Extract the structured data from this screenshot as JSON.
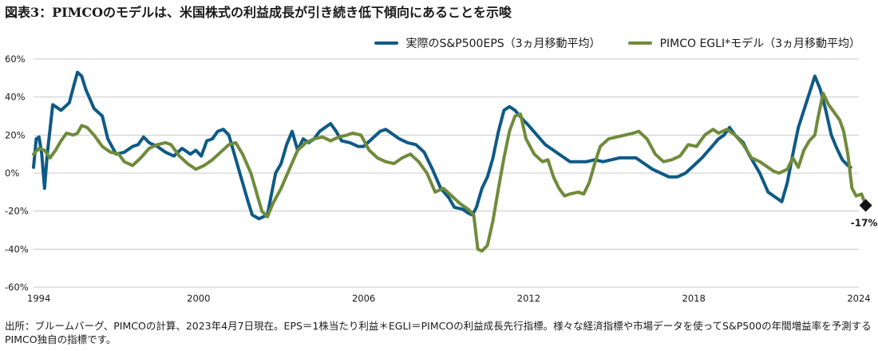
{
  "chart_data": {
    "type": "line",
    "title": "図表3：PIMCOのモデルは、米国株式の利益成長が引き続き低下傾向にあることを示唆",
    "xlabel": "",
    "ylabel": "",
    "xlim": [
      1994,
      2024
    ],
    "ylim": [
      -60,
      60
    ],
    "x_ticks": [
      "1994",
      "2000",
      "2006",
      "2012",
      "2018",
      "2024"
    ],
    "y_ticks": [
      "60%",
      "40%",
      "20%",
      "0%",
      "-20%",
      "-40%",
      "-60%"
    ],
    "y_tick_values": [
      60,
      40,
      20,
      0,
      -20,
      -40,
      -60
    ],
    "x_tick_values": [
      1994,
      2000,
      2006,
      2012,
      2018,
      2024
    ],
    "grid": "horizontal",
    "legend_position": "top-right",
    "series": [
      {
        "name": "実際のS&P500EPS（3ヵ月移動平均）",
        "color": "#0e5a86",
        "points": [
          [
            1994.0,
            3
          ],
          [
            1994.1,
            18
          ],
          [
            1994.2,
            19
          ],
          [
            1994.3,
            10
          ],
          [
            1994.4,
            -8
          ],
          [
            1994.5,
            10
          ],
          [
            1994.7,
            36
          ],
          [
            1995.0,
            33
          ],
          [
            1995.3,
            37
          ],
          [
            1995.5,
            48
          ],
          [
            1995.6,
            53
          ],
          [
            1995.75,
            51
          ],
          [
            1995.9,
            44
          ],
          [
            1996.2,
            34
          ],
          [
            1996.5,
            30
          ],
          [
            1996.7,
            18
          ],
          [
            1997.0,
            10
          ],
          [
            1997.3,
            11
          ],
          [
            1997.6,
            14
          ],
          [
            1997.8,
            15
          ],
          [
            1998.0,
            19
          ],
          [
            1998.2,
            16
          ],
          [
            1998.5,
            14
          ],
          [
            1998.8,
            11
          ],
          [
            1999.1,
            9
          ],
          [
            1999.4,
            13
          ],
          [
            1999.7,
            10
          ],
          [
            1999.9,
            12
          ],
          [
            2000.1,
            9
          ],
          [
            2000.3,
            17
          ],
          [
            2000.5,
            18
          ],
          [
            2000.7,
            22
          ],
          [
            2000.9,
            23
          ],
          [
            2001.1,
            20
          ],
          [
            2001.3,
            10
          ],
          [
            2001.6,
            -5
          ],
          [
            2001.8,
            -15
          ],
          [
            2001.95,
            -22
          ],
          [
            2002.2,
            -24
          ],
          [
            2002.5,
            -22
          ],
          [
            2002.8,
            0
          ],
          [
            2003.0,
            5
          ],
          [
            2003.2,
            15
          ],
          [
            2003.4,
            22
          ],
          [
            2003.6,
            12
          ],
          [
            2003.8,
            18
          ],
          [
            2004.0,
            16
          ],
          [
            2004.2,
            18
          ],
          [
            2004.4,
            22
          ],
          [
            2004.6,
            24
          ],
          [
            2004.8,
            26
          ],
          [
            2005.0,
            22
          ],
          [
            2005.2,
            17
          ],
          [
            2005.5,
            16
          ],
          [
            2005.8,
            14
          ],
          [
            2006.0,
            14
          ],
          [
            2006.3,
            18
          ],
          [
            2006.6,
            22
          ],
          [
            2006.8,
            23
          ],
          [
            2007.0,
            21
          ],
          [
            2007.3,
            18
          ],
          [
            2007.6,
            16
          ],
          [
            2007.9,
            15
          ],
          [
            2008.2,
            11
          ],
          [
            2008.5,
            2
          ],
          [
            2008.8,
            -8
          ],
          [
            2009.1,
            -13
          ],
          [
            2009.3,
            -18
          ],
          [
            2009.6,
            -19
          ],
          [
            2009.8,
            -21
          ],
          [
            2009.95,
            -22
          ],
          [
            2010.1,
            -18
          ],
          [
            2010.3,
            -8
          ],
          [
            2010.5,
            -2
          ],
          [
            2010.7,
            8
          ],
          [
            2010.9,
            22
          ],
          [
            2011.1,
            33
          ],
          [
            2011.3,
            35
          ],
          [
            2011.5,
            33
          ],
          [
            2011.8,
            28
          ],
          [
            2012.0,
            25
          ],
          [
            2012.3,
            20
          ],
          [
            2012.6,
            15
          ],
          [
            2012.9,
            12
          ],
          [
            2013.2,
            9
          ],
          [
            2013.5,
            6
          ],
          [
            2013.8,
            6
          ],
          [
            2014.1,
            6
          ],
          [
            2014.4,
            7
          ],
          [
            2014.7,
            6
          ],
          [
            2015.0,
            7
          ],
          [
            2015.3,
            8
          ],
          [
            2015.6,
            8
          ],
          [
            2015.9,
            8
          ],
          [
            2016.2,
            5
          ],
          [
            2016.5,
            2
          ],
          [
            2016.8,
            0
          ],
          [
            2017.1,
            -2
          ],
          [
            2017.4,
            -2
          ],
          [
            2017.7,
            0
          ],
          [
            2018.0,
            4
          ],
          [
            2018.3,
            8
          ],
          [
            2018.6,
            13
          ],
          [
            2018.9,
            18
          ],
          [
            2019.1,
            20
          ],
          [
            2019.3,
            24
          ],
          [
            2019.5,
            20
          ],
          [
            2019.8,
            16
          ],
          [
            2020.0,
            10
          ],
          [
            2020.2,
            5
          ],
          [
            2020.4,
            0
          ],
          [
            2020.7,
            -10
          ],
          [
            2020.9,
            -12
          ],
          [
            2021.1,
            -14
          ],
          [
            2021.2,
            -15
          ],
          [
            2021.4,
            -5
          ],
          [
            2021.6,
            10
          ],
          [
            2021.8,
            24
          ],
          [
            2022.0,
            33
          ],
          [
            2022.2,
            42
          ],
          [
            2022.4,
            51
          ],
          [
            2022.6,
            44
          ],
          [
            2022.8,
            33
          ],
          [
            2023.0,
            20
          ],
          [
            2023.2,
            13
          ],
          [
            2023.4,
            7
          ],
          [
            2023.6,
            4
          ],
          [
            2023.7,
            3
          ]
        ]
      },
      {
        "name": "PIMCO EGLI*モデル（3ヵ月移動平均）",
        "color": "#6f8b3a",
        "points": [
          [
            1994.0,
            10
          ],
          [
            1994.2,
            13
          ],
          [
            1994.4,
            12
          ],
          [
            1994.6,
            8
          ],
          [
            1994.8,
            12
          ],
          [
            1995.0,
            17
          ],
          [
            1995.2,
            21
          ],
          [
            1995.45,
            20
          ],
          [
            1995.6,
            21
          ],
          [
            1995.75,
            25
          ],
          [
            1995.95,
            24
          ],
          [
            1996.2,
            20
          ],
          [
            1996.5,
            14
          ],
          [
            1996.8,
            11
          ],
          [
            1997.1,
            10
          ],
          [
            1997.3,
            6
          ],
          [
            1997.6,
            4
          ],
          [
            1997.9,
            8
          ],
          [
            1998.2,
            13
          ],
          [
            1998.5,
            15
          ],
          [
            1998.8,
            16
          ],
          [
            1999.0,
            15
          ],
          [
            1999.3,
            9
          ],
          [
            1999.6,
            5
          ],
          [
            1999.9,
            2
          ],
          [
            2000.2,
            4
          ],
          [
            2000.5,
            7
          ],
          [
            2000.8,
            11
          ],
          [
            2001.1,
            15
          ],
          [
            2001.35,
            16
          ],
          [
            2001.6,
            10
          ],
          [
            2001.9,
            0
          ],
          [
            2002.1,
            -10
          ],
          [
            2002.3,
            -20
          ],
          [
            2002.5,
            -23
          ],
          [
            2002.7,
            -16
          ],
          [
            2003.0,
            -8
          ],
          [
            2003.3,
            2
          ],
          [
            2003.6,
            12
          ],
          [
            2003.9,
            16
          ],
          [
            2004.2,
            18
          ],
          [
            2004.5,
            19
          ],
          [
            2004.8,
            17
          ],
          [
            2005.1,
            19
          ],
          [
            2005.4,
            20
          ],
          [
            2005.6,
            21
          ],
          [
            2005.9,
            20
          ],
          [
            2006.2,
            12
          ],
          [
            2006.5,
            8
          ],
          [
            2006.8,
            6
          ],
          [
            2007.1,
            5
          ],
          [
            2007.4,
            8
          ],
          [
            2007.7,
            10
          ],
          [
            2008.0,
            6
          ],
          [
            2008.3,
            0
          ],
          [
            2008.6,
            -10
          ],
          [
            2008.9,
            -8
          ],
          [
            2009.2,
            -12
          ],
          [
            2009.5,
            -16
          ],
          [
            2009.8,
            -19
          ],
          [
            2010.0,
            -22
          ],
          [
            2010.15,
            -40
          ],
          [
            2010.3,
            -41
          ],
          [
            2010.5,
            -38
          ],
          [
            2010.7,
            -25
          ],
          [
            2010.9,
            -8
          ],
          [
            2011.1,
            8
          ],
          [
            2011.3,
            22
          ],
          [
            2011.5,
            30
          ],
          [
            2011.7,
            31
          ],
          [
            2011.9,
            18
          ],
          [
            2012.2,
            10
          ],
          [
            2012.5,
            6
          ],
          [
            2012.7,
            7
          ],
          [
            2012.9,
            -2
          ],
          [
            2013.1,
            -8
          ],
          [
            2013.3,
            -12
          ],
          [
            2013.5,
            -11
          ],
          [
            2013.8,
            -10
          ],
          [
            2014.0,
            -11
          ],
          [
            2014.2,
            -5
          ],
          [
            2014.4,
            5
          ],
          [
            2014.6,
            14
          ],
          [
            2014.9,
            18
          ],
          [
            2015.2,
            19
          ],
          [
            2015.5,
            20
          ],
          [
            2015.8,
            21
          ],
          [
            2016.0,
            22
          ],
          [
            2016.3,
            18
          ],
          [
            2016.6,
            10
          ],
          [
            2016.9,
            6
          ],
          [
            2017.2,
            7
          ],
          [
            2017.5,
            9
          ],
          [
            2017.8,
            15
          ],
          [
            2018.1,
            14
          ],
          [
            2018.4,
            20
          ],
          [
            2018.7,
            23
          ],
          [
            2018.9,
            21
          ],
          [
            2019.2,
            23
          ],
          [
            2019.5,
            20
          ],
          [
            2019.8,
            15
          ],
          [
            2020.1,
            8
          ],
          [
            2020.4,
            6
          ],
          [
            2020.7,
            3
          ],
          [
            2020.9,
            1
          ],
          [
            2021.1,
            0
          ],
          [
            2021.4,
            2
          ],
          [
            2021.6,
            8
          ],
          [
            2021.8,
            3
          ],
          [
            2022.0,
            12
          ],
          [
            2022.2,
            17
          ],
          [
            2022.4,
            20
          ],
          [
            2022.5,
            28
          ],
          [
            2022.7,
            42
          ],
          [
            2022.9,
            36
          ],
          [
            2023.1,
            32
          ],
          [
            2023.3,
            28
          ],
          [
            2023.45,
            22
          ],
          [
            2023.6,
            10
          ],
          [
            2023.75,
            -8
          ],
          [
            2023.9,
            -12
          ],
          [
            2024.1,
            -11
          ],
          [
            2024.25,
            -17
          ]
        ]
      }
    ],
    "annotations": [
      {
        "x": 2024.25,
        "y": -17,
        "label": "-17%",
        "marker": "diamond"
      }
    ]
  },
  "source_note": "出所：ブルームバーグ、PIMCOの計算、2023年4月7日現在。EPS＝1株当たり利益＊EGLI＝PIMCOの利益成長先行指標。様々な経済指標や市場データを使ってS&P500の年間増益率を予測するPIMCO独自の指標です。"
}
